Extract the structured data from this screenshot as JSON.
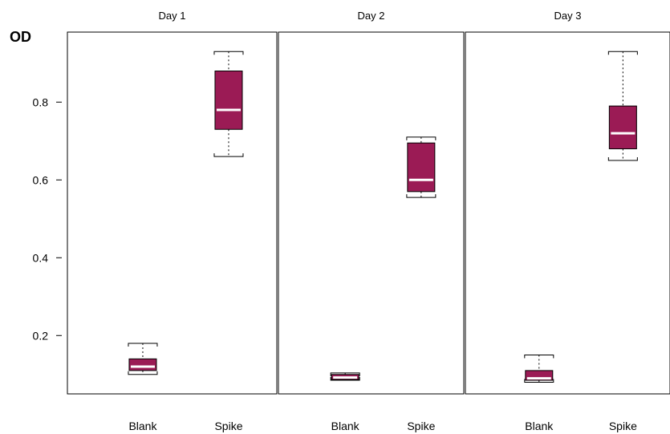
{
  "chart_data": {
    "type": "boxplot",
    "title": "",
    "ylabel": "OD",
    "xlabel": "",
    "ylim": [
      0.05,
      0.98
    ],
    "yticks": [
      0.2,
      0.4,
      0.6,
      0.8
    ],
    "ytick_labels": [
      "0.2",
      "0.4",
      "0.6",
      "0.8"
    ],
    "grid": false,
    "box_color": "#9b1b55",
    "median_color": "#ffffff",
    "categories": [
      "Blank",
      "Spike"
    ],
    "panels": [
      {
        "name": "Day 1",
        "boxes": [
          {
            "category": "Blank",
            "whisker_low": 0.1,
            "q1": 0.11,
            "median": 0.12,
            "q3": 0.14,
            "whisker_high": 0.18
          },
          {
            "category": "Spike",
            "whisker_low": 0.66,
            "q1": 0.73,
            "median": 0.78,
            "q3": 0.88,
            "whisker_high": 0.93
          }
        ]
      },
      {
        "name": "Day 2",
        "boxes": [
          {
            "category": "Blank",
            "whisker_low": 0.085,
            "q1": 0.087,
            "median": 0.092,
            "q3": 0.1,
            "whisker_high": 0.104
          },
          {
            "category": "Spike",
            "whisker_low": 0.555,
            "q1": 0.57,
            "median": 0.6,
            "q3": 0.695,
            "whisker_high": 0.71
          }
        ]
      },
      {
        "name": "Day 3",
        "boxes": [
          {
            "category": "Blank",
            "whisker_low": 0.08,
            "q1": 0.085,
            "median": 0.09,
            "q3": 0.11,
            "whisker_high": 0.15
          },
          {
            "category": "Spike",
            "whisker_low": 0.65,
            "q1": 0.68,
            "median": 0.72,
            "q3": 0.79,
            "whisker_high": 0.93
          }
        ]
      }
    ]
  }
}
